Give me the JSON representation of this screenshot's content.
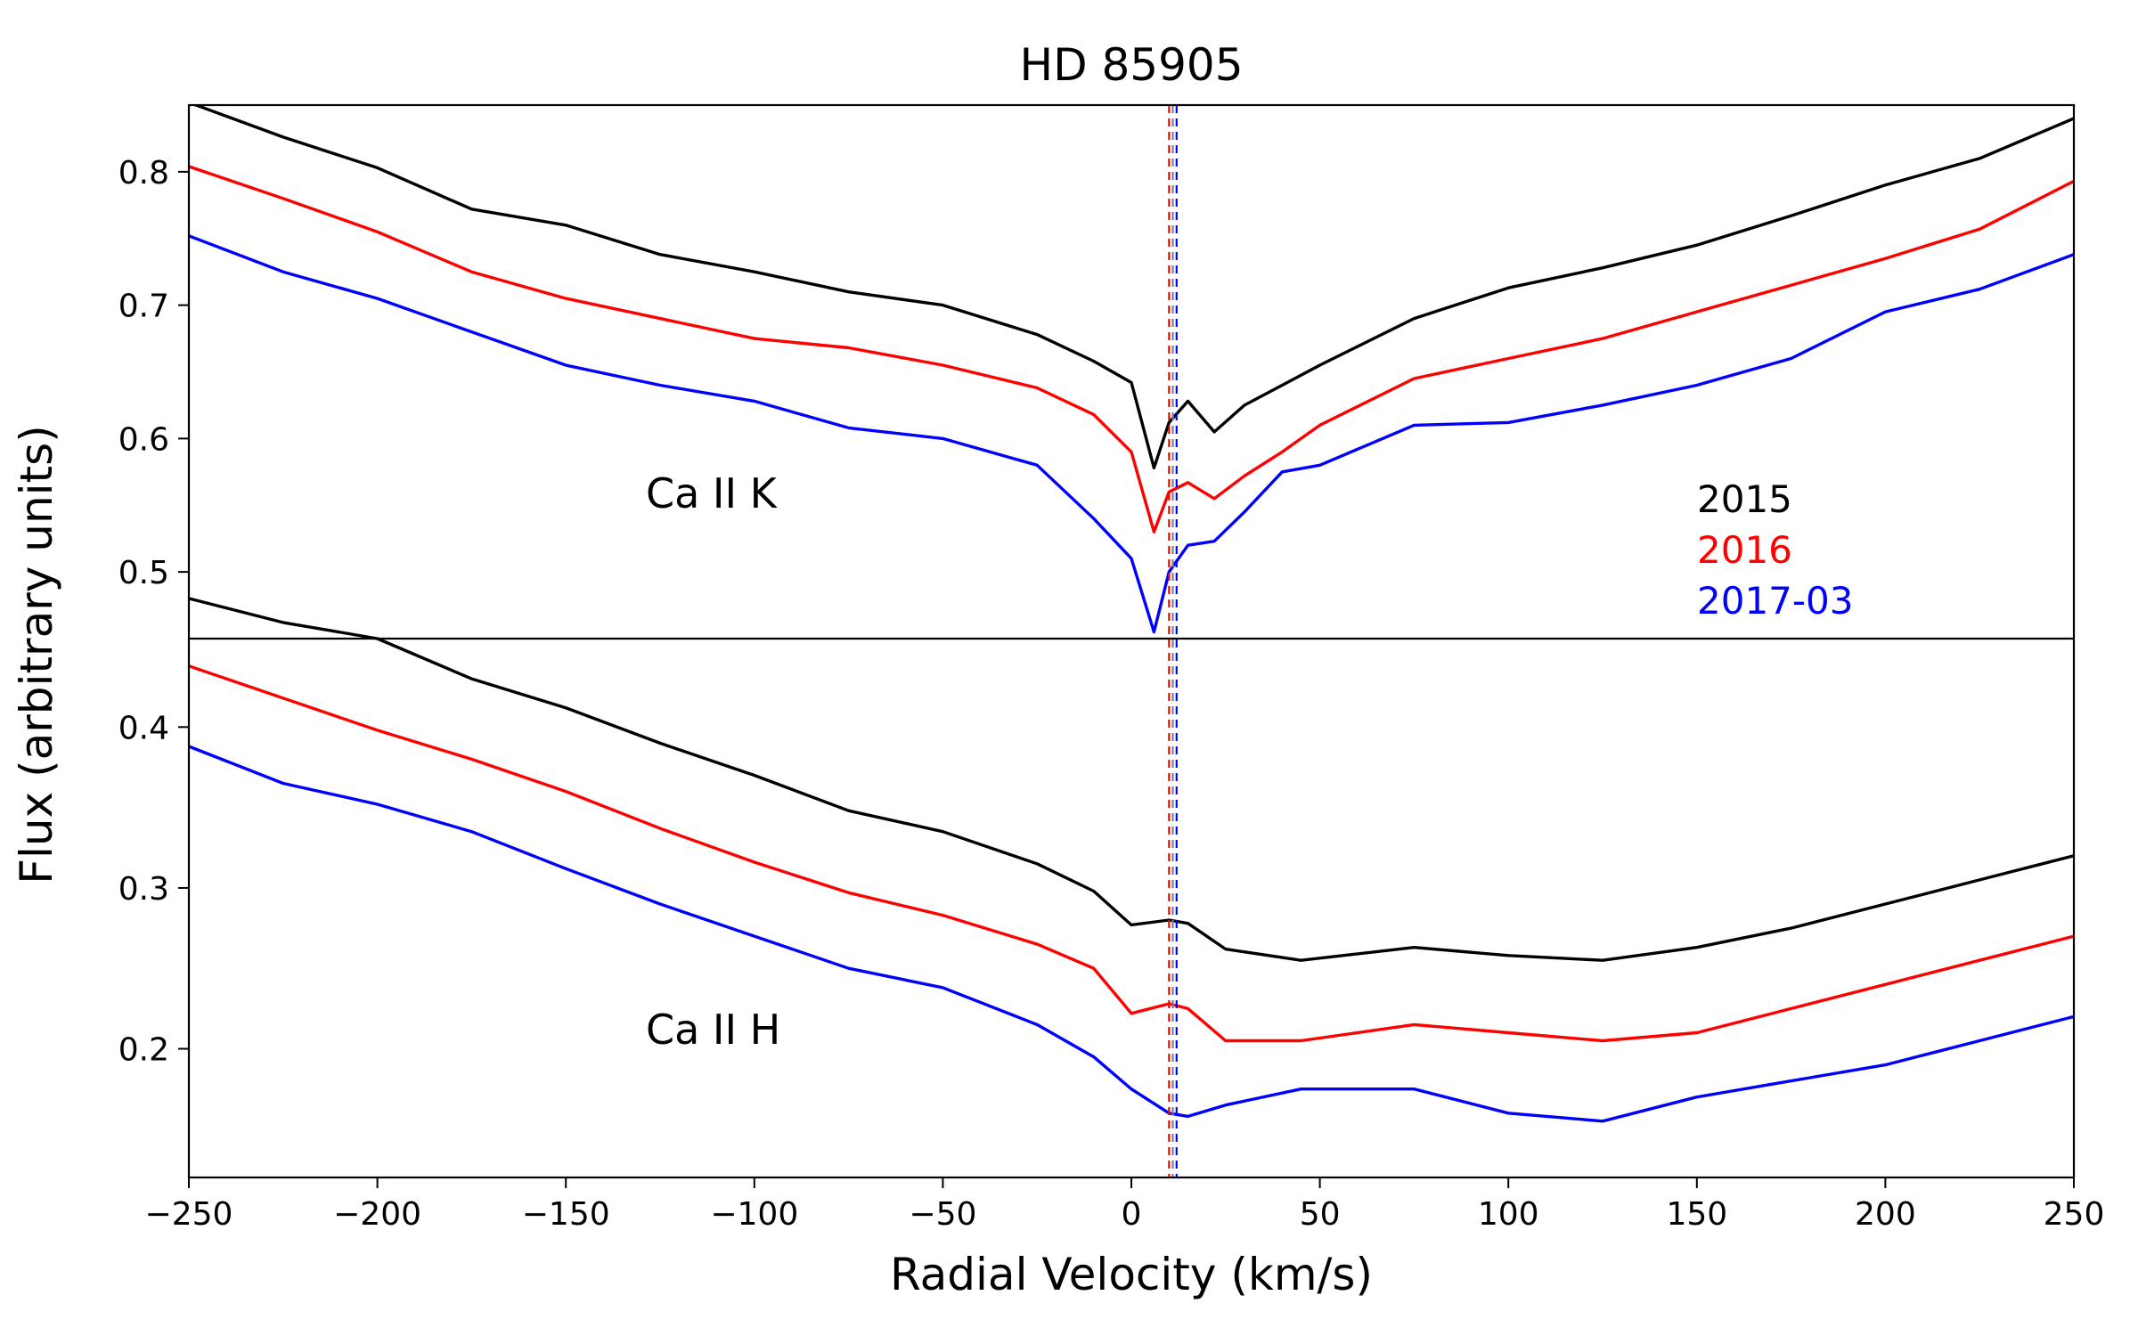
{
  "chart_data": {
    "title": "HD 85905",
    "xlabel": "Radial Velocity (km/s)",
    "ylabel": "Flux (arbitrary units)",
    "xlim": [
      -250,
      250
    ],
    "xticks": [
      -250,
      -200,
      -150,
      -100,
      -50,
      0,
      50,
      100,
      150,
      200,
      250
    ],
    "xtick_labels": [
      "−250",
      "−200",
      "−150",
      "−100",
      "−50",
      "0",
      "50",
      "100",
      "150",
      "200",
      "250"
    ],
    "colors": {
      "2015": "#000000",
      "2016": "#ff0000",
      "2017-03": "#0000ff"
    },
    "legend": {
      "position": "lower-right of top panel",
      "entries": [
        "2015",
        "2016",
        "2017-03"
      ]
    },
    "vlines": [
      {
        "x": 10,
        "color": "#ff0000",
        "style": "dashed"
      },
      {
        "x": 11,
        "color": "#808080",
        "style": "dashed"
      },
      {
        "x": 12,
        "color": "#0000ff",
        "style": "dashed"
      }
    ],
    "panels": [
      {
        "type": "line",
        "label": "Ca II K",
        "ylim": [
          0.45,
          0.85
        ],
        "yticks": [
          0.5,
          0.6,
          0.7,
          0.8
        ],
        "ytick_labels": [
          "0.5",
          "0.6",
          "0.7",
          "0.8"
        ],
        "series": [
          {
            "name": "2015",
            "x": [
              -250,
              -225,
              -200,
              -175,
              -150,
              -125,
              -100,
              -75,
              -50,
              -25,
              -10,
              0,
              6,
              10,
              15,
              22,
              30,
              40,
              50,
              75,
              100,
              125,
              150,
              175,
              200,
              225,
              250
            ],
            "values": [
              0.852,
              0.826,
              0.803,
              0.772,
              0.76,
              0.738,
              0.725,
              0.71,
              0.7,
              0.678,
              0.658,
              0.642,
              0.578,
              0.612,
              0.628,
              0.605,
              0.625,
              0.64,
              0.655,
              0.69,
              0.713,
              0.728,
              0.745,
              0.767,
              0.79,
              0.81,
              0.84
            ]
          },
          {
            "name": "2016",
            "x": [
              -250,
              -225,
              -200,
              -175,
              -150,
              -125,
              -100,
              -75,
              -50,
              -25,
              -10,
              0,
              6,
              10,
              15,
              22,
              30,
              40,
              50,
              75,
              100,
              125,
              150,
              175,
              200,
              225,
              250
            ],
            "values": [
              0.804,
              0.78,
              0.755,
              0.725,
              0.705,
              0.69,
              0.675,
              0.668,
              0.655,
              0.638,
              0.618,
              0.59,
              0.53,
              0.56,
              0.567,
              0.555,
              0.572,
              0.59,
              0.61,
              0.645,
              0.66,
              0.675,
              0.695,
              0.715,
              0.735,
              0.757,
              0.793
            ]
          },
          {
            "name": "2017-03",
            "x": [
              -250,
              -225,
              -200,
              -175,
              -150,
              -125,
              -100,
              -75,
              -50,
              -25,
              -10,
              0,
              6,
              10,
              15,
              22,
              30,
              40,
              50,
              75,
              100,
              125,
              150,
              175,
              200,
              225,
              250
            ],
            "values": [
              0.752,
              0.725,
              0.705,
              0.68,
              0.655,
              0.64,
              0.628,
              0.608,
              0.6,
              0.58,
              0.54,
              0.51,
              0.455,
              0.5,
              0.52,
              0.523,
              0.545,
              0.575,
              0.58,
              0.61,
              0.612,
              0.625,
              0.64,
              0.66,
              0.695,
              0.712,
              0.738
            ]
          }
        ]
      },
      {
        "type": "line",
        "label": "Ca II H",
        "ylim": [
          0.12,
          0.455
        ],
        "yticks": [
          0.2,
          0.3,
          0.4
        ],
        "ytick_labels": [
          "0.2",
          "0.3",
          "0.4"
        ],
        "series": [
          {
            "name": "2015",
            "x": [
              -250,
              -225,
              -200,
              -175,
              -150,
              -125,
              -100,
              -75,
              -50,
              -25,
              -10,
              0,
              10,
              15,
              25,
              45,
              75,
              100,
              125,
              150,
              175,
              200,
              225,
              250
            ],
            "values": [
              0.48,
              0.465,
              0.455,
              0.43,
              0.412,
              0.39,
              0.37,
              0.348,
              0.335,
              0.315,
              0.298,
              0.277,
              0.28,
              0.278,
              0.262,
              0.255,
              0.263,
              0.258,
              0.255,
              0.263,
              0.275,
              0.29,
              0.305,
              0.32
            ]
          },
          {
            "name": "2016",
            "x": [
              -250,
              -225,
              -200,
              -175,
              -150,
              -125,
              -100,
              -75,
              -50,
              -25,
              -10,
              0,
              10,
              15,
              25,
              45,
              75,
              100,
              125,
              150,
              175,
              200,
              225,
              250
            ],
            "values": [
              0.438,
              0.418,
              0.398,
              0.38,
              0.36,
              0.337,
              0.316,
              0.297,
              0.283,
              0.265,
              0.25,
              0.222,
              0.228,
              0.225,
              0.205,
              0.205,
              0.215,
              0.21,
              0.205,
              0.21,
              0.225,
              0.24,
              0.255,
              0.27
            ]
          },
          {
            "name": "2017-03",
            "x": [
              -250,
              -225,
              -200,
              -175,
              -150,
              -125,
              -100,
              -75,
              -50,
              -25,
              -10,
              0,
              10,
              15,
              25,
              45,
              75,
              100,
              125,
              150,
              175,
              200,
              225,
              250
            ],
            "values": [
              0.388,
              0.365,
              0.352,
              0.335,
              0.312,
              0.29,
              0.27,
              0.25,
              0.238,
              0.215,
              0.195,
              0.175,
              0.16,
              0.158,
              0.165,
              0.175,
              0.175,
              0.16,
              0.155,
              0.17,
              0.18,
              0.19,
              0.205,
              0.22
            ]
          }
        ]
      }
    ]
  }
}
